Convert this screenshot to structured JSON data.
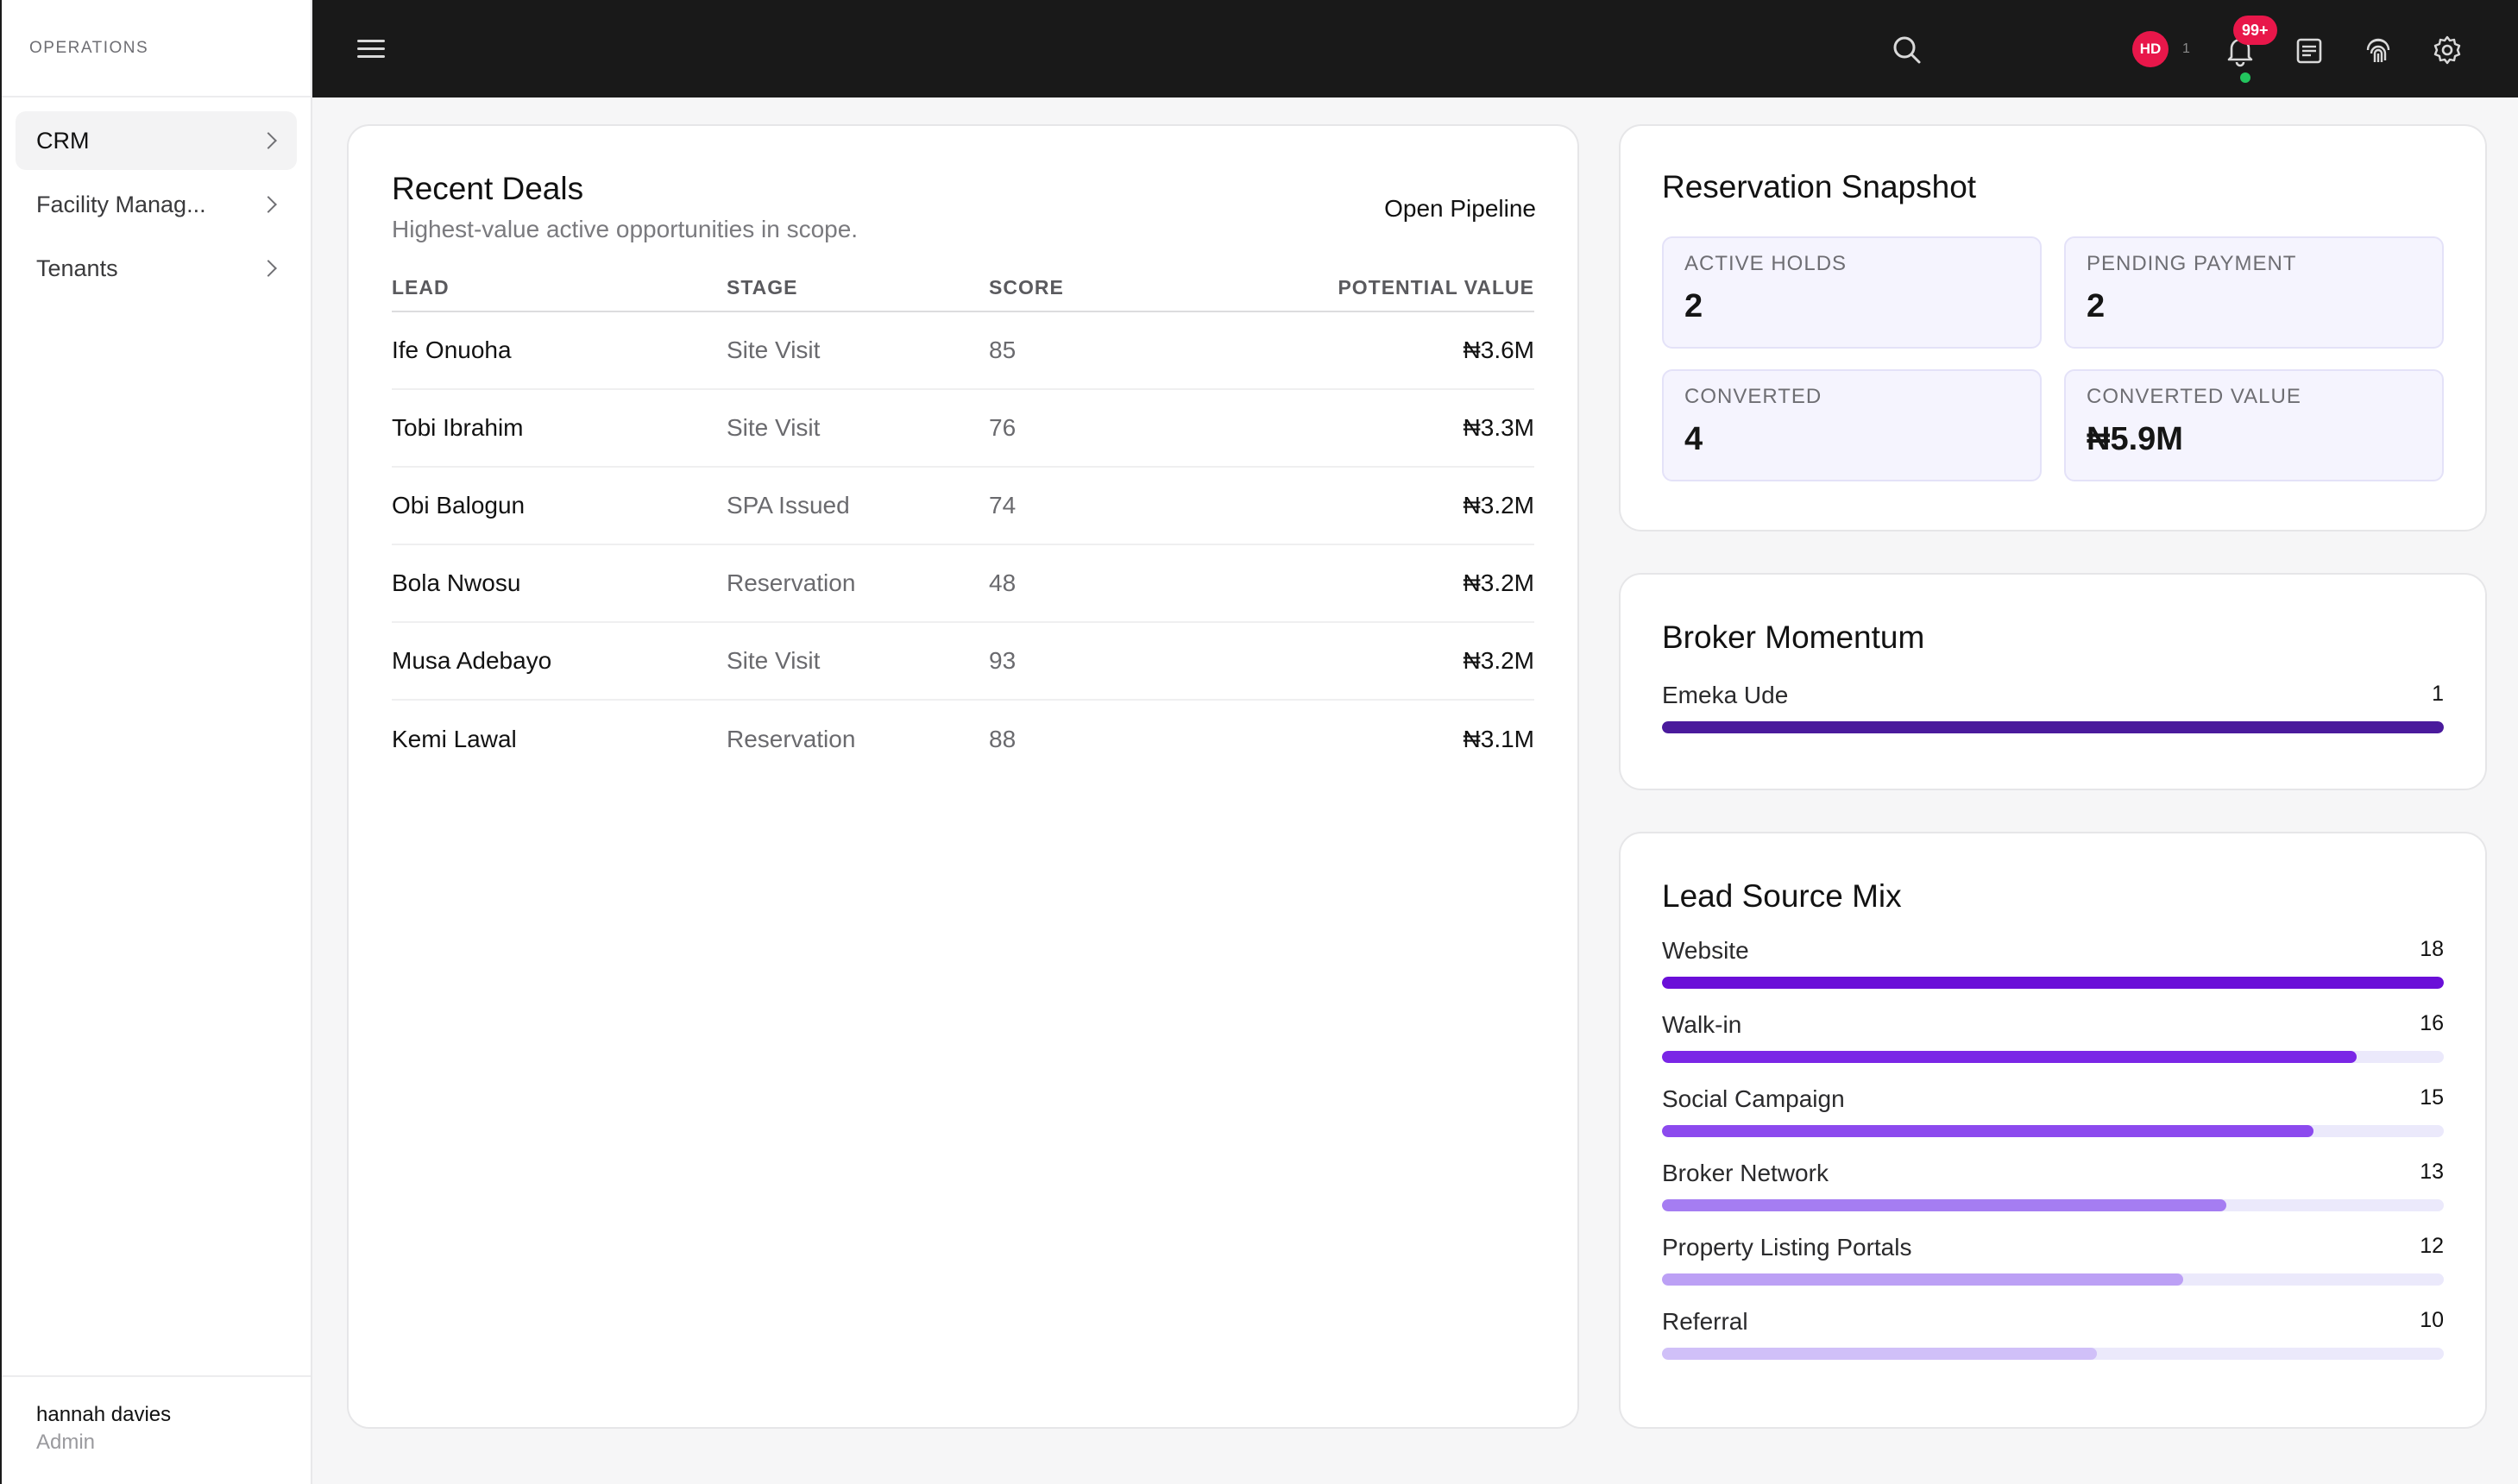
{
  "sidebar": {
    "section_label": "OPERATIONS",
    "items": [
      {
        "label": "CRM",
        "active": true
      },
      {
        "label": "Facility Manag..."
      },
      {
        "label": "Tenants"
      }
    ],
    "user": {
      "name": "hannah davies",
      "role": "Admin"
    }
  },
  "topbar": {
    "avatar_initials": "HD",
    "avatar_count": "1",
    "notification_badge": "99+",
    "icons": [
      "menu-icon",
      "search-icon",
      "bell-icon",
      "notes-icon",
      "fingerprint-icon",
      "gear-icon"
    ]
  },
  "recent_deals": {
    "title": "Recent Deals",
    "subtitle": "Highest-value active opportunities in scope.",
    "action": "Open Pipeline",
    "columns": [
      "LEAD",
      "STAGE",
      "SCORE",
      "POTENTIAL VALUE"
    ],
    "rows": [
      {
        "lead": "Ife Onuoha",
        "stage": "Site Visit",
        "score": "85",
        "value": "₦3.6M"
      },
      {
        "lead": "Tobi Ibrahim",
        "stage": "Site Visit",
        "score": "76",
        "value": "₦3.3M"
      },
      {
        "lead": "Obi Balogun",
        "stage": "SPA Issued",
        "score": "74",
        "value": "₦3.2M"
      },
      {
        "lead": "Bola Nwosu",
        "stage": "Reservation",
        "score": "48",
        "value": "₦3.2M"
      },
      {
        "lead": "Musa Adebayo",
        "stage": "Site Visit",
        "score": "93",
        "value": "₦3.2M"
      },
      {
        "lead": "Kemi Lawal",
        "stage": "Reservation",
        "score": "88",
        "value": "₦3.1M"
      }
    ]
  },
  "reservation_snapshot": {
    "title": "Reservation Snapshot",
    "stats": [
      {
        "label": "ACTIVE HOLDS",
        "value": "2"
      },
      {
        "label": "PENDING PAYMENT",
        "value": "2"
      },
      {
        "label": "CONVERTED",
        "value": "4"
      },
      {
        "label": "CONVERTED VALUE",
        "value": "₦5.9M"
      }
    ]
  },
  "broker_momentum": {
    "title": "Broker Momentum",
    "items": [
      {
        "name": "Emeka Ude",
        "count": "1",
        "fraction": 1.0,
        "color": "#4a1a9c"
      }
    ]
  },
  "lead_source_mix": {
    "title": "Lead Source Mix",
    "items": [
      {
        "name": "Website",
        "count": "18",
        "fraction": 1.0,
        "color": "#6a0fd8"
      },
      {
        "name": "Walk-in",
        "count": "16",
        "fraction": 0.889,
        "color": "#7a26e6"
      },
      {
        "name": "Social Campaign",
        "count": "15",
        "fraction": 0.833,
        "color": "#8c4aee"
      },
      {
        "name": "Broker Network",
        "count": "13",
        "fraction": 0.722,
        "color": "#a57df2"
      },
      {
        "name": "Property Listing Portals",
        "count": "12",
        "fraction": 0.667,
        "color": "#bca0f5"
      },
      {
        "name": "Referral",
        "count": "10",
        "fraction": 0.556,
        "color": "#d0c0f8"
      }
    ]
  }
}
